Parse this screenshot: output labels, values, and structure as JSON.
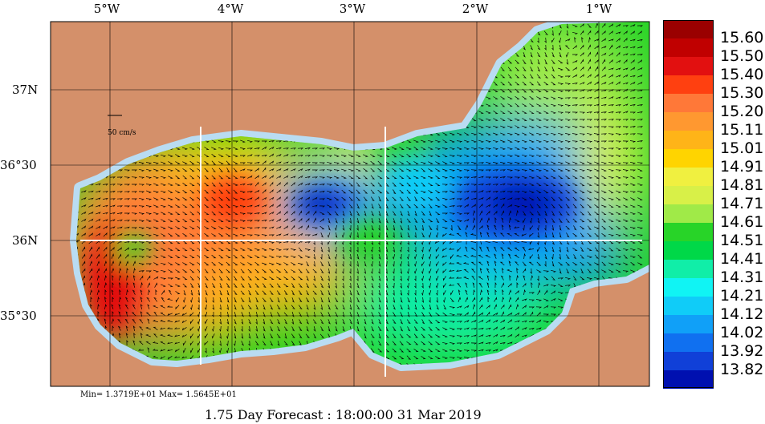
{
  "map": {
    "longitude_labels": [
      "5°W",
      "4°W",
      "3°W",
      "2°W",
      "1°W"
    ],
    "latitude_labels": [
      "37N",
      "36°30",
      "36N",
      "35°30"
    ],
    "scale_label": "50 cm/s",
    "land_color": "#d4906a",
    "shelf_color": "#b9dcf2"
  },
  "colorbar": {
    "levels": [
      "15.60",
      "15.50",
      "15.40",
      "15.30",
      "15.20",
      "15.11",
      "15.01",
      "14.91",
      "14.81",
      "14.71",
      "14.61",
      "14.51",
      "14.41",
      "14.31",
      "14.21",
      "14.12",
      "14.02",
      "13.92",
      "13.82"
    ],
    "colors": [
      "#9a0000",
      "#c00000",
      "#e21010",
      "#ff4010",
      "#ff7838",
      "#ff9830",
      "#ffb418",
      "#ffd400",
      "#f0f040",
      "#d8f048",
      "#a0ea48",
      "#28d428",
      "#00d848",
      "#10eea8",
      "#10f4f4",
      "#10ccf8",
      "#10a0f8",
      "#1070f0",
      "#1040d8",
      "#0010b0"
    ]
  },
  "footer": {
    "minmax": "Min= 1.3719E+01  Max= 1.5645E+01",
    "forecast": "1.75 Day Forecast : 18:00:00  31 Mar 2019"
  }
}
